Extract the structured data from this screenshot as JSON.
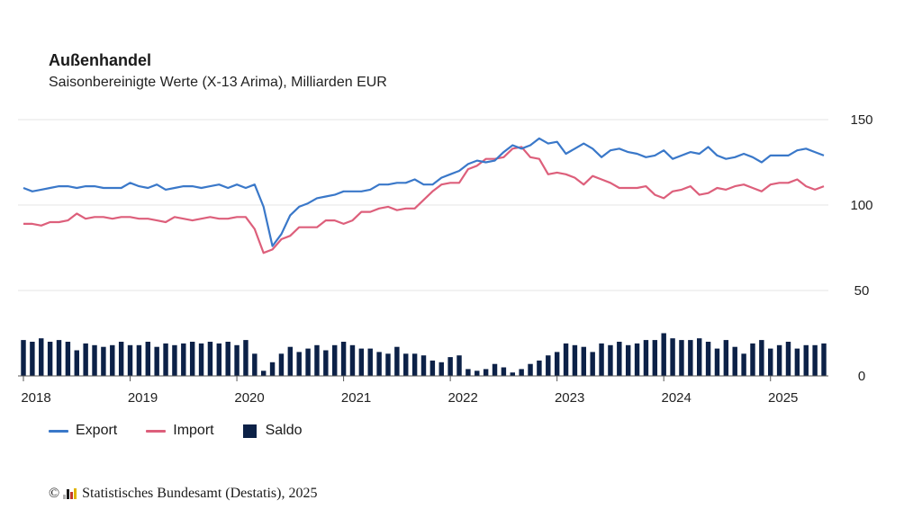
{
  "header": {
    "title": "Außenhandel",
    "subtitle": "Saisonbereinigte Werte (X-13 Arima), Milliarden EUR"
  },
  "legend": {
    "export_label": "Export",
    "import_label": "Import",
    "saldo_label": "Saldo"
  },
  "footer": {
    "copyright_symbol": "©",
    "source_text": "Statistisches Bundesamt (Destatis), 2025"
  },
  "colors": {
    "export": "#3a78c9",
    "import": "#dd5f7b",
    "saldo": "#0c2147",
    "grid": "#e6e6e6",
    "axis": "#555555"
  },
  "chart_data": {
    "type": "line",
    "x_start": "2018-01",
    "x_labels": [
      "2018",
      "2019",
      "2020",
      "2021",
      "2022",
      "2023",
      "2024",
      "2025"
    ],
    "y_ticks": [
      0,
      50,
      100,
      150
    ],
    "ylim": [
      0,
      150
    ],
    "y_axis_side": "right",
    "grid": true,
    "legend_position": "bottom-left",
    "series": [
      {
        "name": "Export",
        "type": "line",
        "values": [
          110,
          108,
          109,
          110,
          111,
          111,
          110,
          111,
          111,
          110,
          110,
          110,
          113,
          111,
          110,
          112,
          109,
          110,
          111,
          111,
          110,
          111,
          112,
          110,
          112,
          110,
          112,
          99,
          76,
          83,
          94,
          99,
          101,
          104,
          105,
          106,
          108,
          108,
          108,
          109,
          112,
          112,
          113,
          113,
          115,
          112,
          112,
          116,
          118,
          120,
          124,
          126,
          125,
          126,
          131,
          135,
          133,
          135,
          139,
          136,
          137,
          130,
          133,
          136,
          133,
          128,
          132,
          133,
          131,
          130,
          128,
          129,
          132,
          127,
          129,
          131,
          130,
          134,
          129,
          127,
          128,
          130,
          128,
          125,
          129,
          129,
          129,
          132,
          133,
          131,
          129
        ],
        "color_key": "export"
      },
      {
        "name": "Import",
        "type": "line",
        "values": [
          89,
          89,
          88,
          90,
          90,
          91,
          95,
          92,
          93,
          93,
          92,
          93,
          93,
          92,
          92,
          91,
          90,
          93,
          92,
          91,
          92,
          93,
          92,
          92,
          93,
          93,
          86,
          72,
          74,
          80,
          82,
          87,
          87,
          87,
          91,
          91,
          89,
          91,
          96,
          96,
          98,
          99,
          97,
          98,
          98,
          103,
          108,
          112,
          113,
          113,
          121,
          123,
          127,
          127,
          128,
          133,
          134,
          128,
          127,
          118,
          119,
          118,
          116,
          112,
          117,
          115,
          113,
          110,
          110,
          110,
          111,
          106,
          104,
          108,
          109,
          111,
          106,
          107,
          110,
          109,
          111,
          112,
          110,
          108,
          112,
          113,
          113,
          115,
          111,
          109,
          111
        ],
        "color_key": "import"
      },
      {
        "name": "Saldo",
        "type": "bar",
        "values": [
          21,
          20,
          22,
          20,
          21,
          20,
          15,
          19,
          18,
          17,
          18,
          20,
          18,
          18,
          20,
          17,
          19,
          18,
          19,
          20,
          19,
          20,
          19,
          20,
          18,
          21,
          13,
          3,
          8,
          13,
          17,
          14,
          16,
          18,
          15,
          18,
          20,
          18,
          16,
          16,
          14,
          13,
          17,
          13,
          13,
          12,
          9,
          8,
          11,
          12,
          4,
          3,
          4,
          7,
          5,
          2,
          4,
          7,
          9,
          12,
          14,
          19,
          18,
          17,
          14,
          19,
          18,
          20,
          18,
          19,
          21,
          21,
          25,
          22,
          21,
          21,
          22,
          20,
          16,
          21,
          17,
          13,
          19,
          21,
          16,
          18,
          20,
          16,
          18,
          18,
          19
        ]
      }
    ]
  }
}
